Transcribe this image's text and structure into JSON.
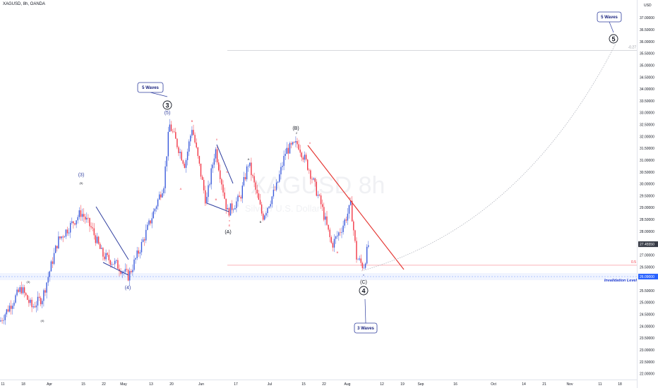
{
  "header": {
    "symbol": "XAGUSD, 8h, OANDA"
  },
  "watermark": {
    "main": "XAGUSD 8h",
    "sub": "Silver / U.S. Dollar"
  },
  "chart_data": {
    "type": "candlestick",
    "currency": "USD",
    "ylim": [
      21.75,
      37.75
    ],
    "y_ticks": [
      {
        "v": 37.0,
        "t": "37.00000"
      },
      {
        "v": 36.5,
        "t": "36.50000"
      },
      {
        "v": 36.0,
        "t": "36.00000"
      },
      {
        "v": 35.5,
        "t": "35.50000"
      },
      {
        "v": 35.0,
        "t": "35.00000"
      },
      {
        "v": 34.5,
        "t": "34.50000"
      },
      {
        "v": 34.0,
        "t": "34.00000"
      },
      {
        "v": 33.5,
        "t": "33.50000"
      },
      {
        "v": 33.0,
        "t": "33.00000"
      },
      {
        "v": 32.5,
        "t": "32.50000"
      },
      {
        "v": 32.0,
        "t": "32.00000"
      },
      {
        "v": 31.5,
        "t": "31.50000"
      },
      {
        "v": 31.0,
        "t": "31.00000"
      },
      {
        "v": 30.5,
        "t": "30.50000"
      },
      {
        "v": 30.0,
        "t": "30.00000"
      },
      {
        "v": 29.5,
        "t": "29.50000"
      },
      {
        "v": 29.0,
        "t": "29.00000"
      },
      {
        "v": 28.5,
        "t": "28.50000"
      },
      {
        "v": 28.0,
        "t": "28.00000"
      },
      {
        "v": 27.5,
        "t": "27.50000"
      },
      {
        "v": 27.0,
        "t": "27.00000"
      },
      {
        "v": 26.5,
        "t": "26.50000"
      },
      {
        "v": 25.5,
        "t": "25.50000"
      },
      {
        "v": 25.0,
        "t": "25.00000"
      },
      {
        "v": 24.5,
        "t": "24.50000"
      },
      {
        "v": 24.0,
        "t": "24.00000"
      },
      {
        "v": 23.5,
        "t": "23.50000"
      },
      {
        "v": 23.0,
        "t": "23.00000"
      },
      {
        "v": 22.5,
        "t": "22.50000"
      },
      {
        "v": 22.0,
        "t": "22.00000"
      }
    ],
    "x_ticks": [
      "11",
      "18",
      "Apr",
      "15",
      "22",
      "May",
      "13",
      "20",
      "Jun",
      "17",
      "Jul",
      "15",
      "22",
      "Aug",
      "12",
      "19",
      "Sep",
      "16",
      "Oct",
      "14",
      "21",
      "Nov",
      "11",
      "18"
    ],
    "price_markers": [
      {
        "v": 27.4555,
        "t": "27.45550",
        "color": "#363a45"
      },
      {
        "v": 26.09,
        "t": "26.09000",
        "color": "#2962ff"
      }
    ],
    "fib_levels": [
      {
        "v": 35.63,
        "t": "-0.27"
      },
      {
        "v": 26.57,
        "t": "0.5"
      }
    ],
    "invalidation": {
      "v": 26.09,
      "text": "Invalidation Level"
    },
    "key_points": [
      {
        "date": "Mar 26",
        "value": 28.8
      },
      {
        "date": "Apr 12",
        "value": 26.0
      },
      {
        "date": "May 20",
        "value": 32.5
      },
      {
        "date": "Jun 10",
        "value": 28.6
      },
      {
        "date": "Jul 11",
        "value": 31.8
      },
      {
        "date": "Aug 05",
        "value": 26.5
      }
    ],
    "wave_labels": [
      "3",
      "(5)",
      "(3)",
      "(5)",
      "(4)",
      "(3)",
      "(4)",
      "(A)",
      "A",
      "B",
      "i",
      "ii",
      "iii",
      "iv",
      "v",
      "E",
      "(B)",
      "2",
      "ii",
      "iii",
      "iv",
      "v",
      "(C)",
      "4",
      "5",
      "B",
      "A"
    ],
    "callouts": [
      {
        "text": "5 Waves"
      },
      {
        "text": "3 Waves"
      },
      {
        "text": "5 Waves"
      }
    ]
  }
}
